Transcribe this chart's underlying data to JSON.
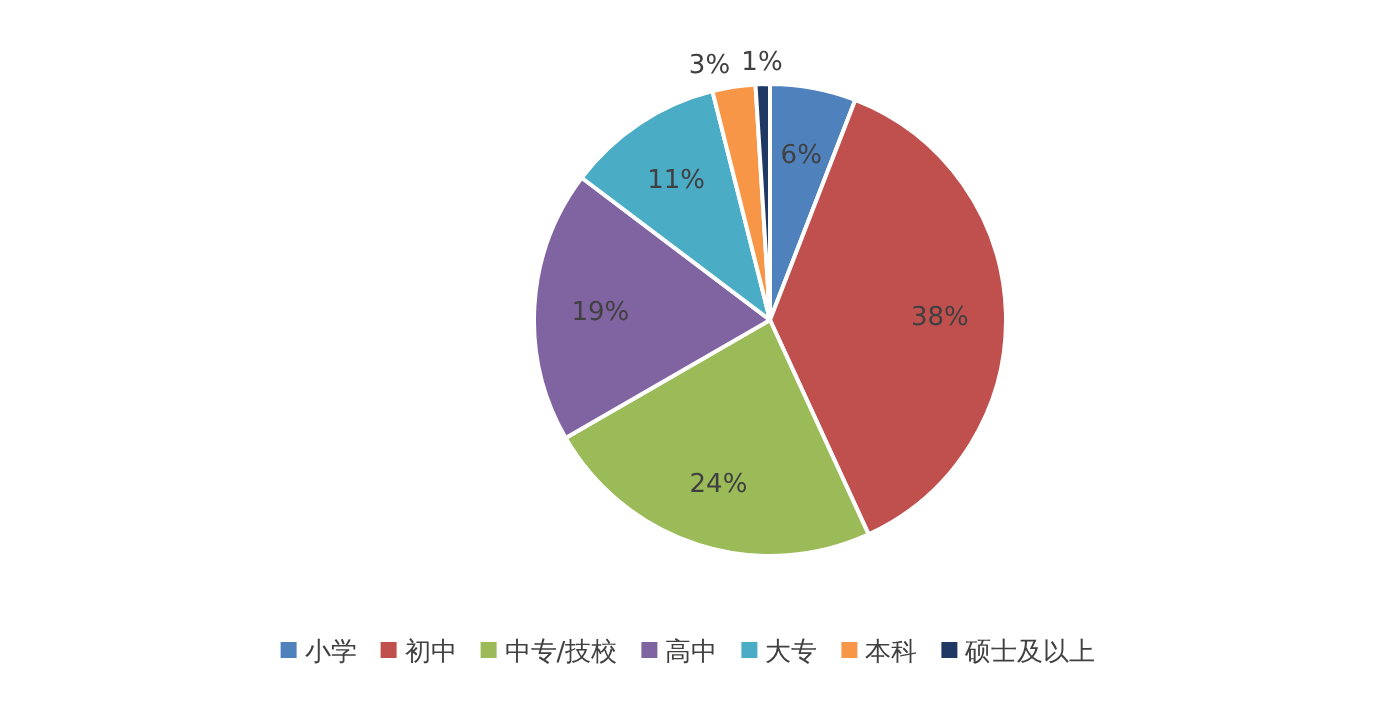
{
  "chart_data": {
    "type": "pie",
    "categories": [
      "小学",
      "初中",
      "中专/技校",
      "高中",
      "大专",
      "本科",
      "硕士及以上"
    ],
    "values": [
      6,
      38,
      24,
      19,
      11,
      3,
      1
    ],
    "colors": [
      "#4f81bd",
      "#c0504d",
      "#9bbb59",
      "#8064a2",
      "#4bacc6",
      "#f79646",
      "#1f3864"
    ],
    "value_labels": [
      "6%",
      "38%",
      "24%",
      "19%",
      "11%",
      "3%",
      "1%"
    ],
    "legend": "bottom"
  }
}
